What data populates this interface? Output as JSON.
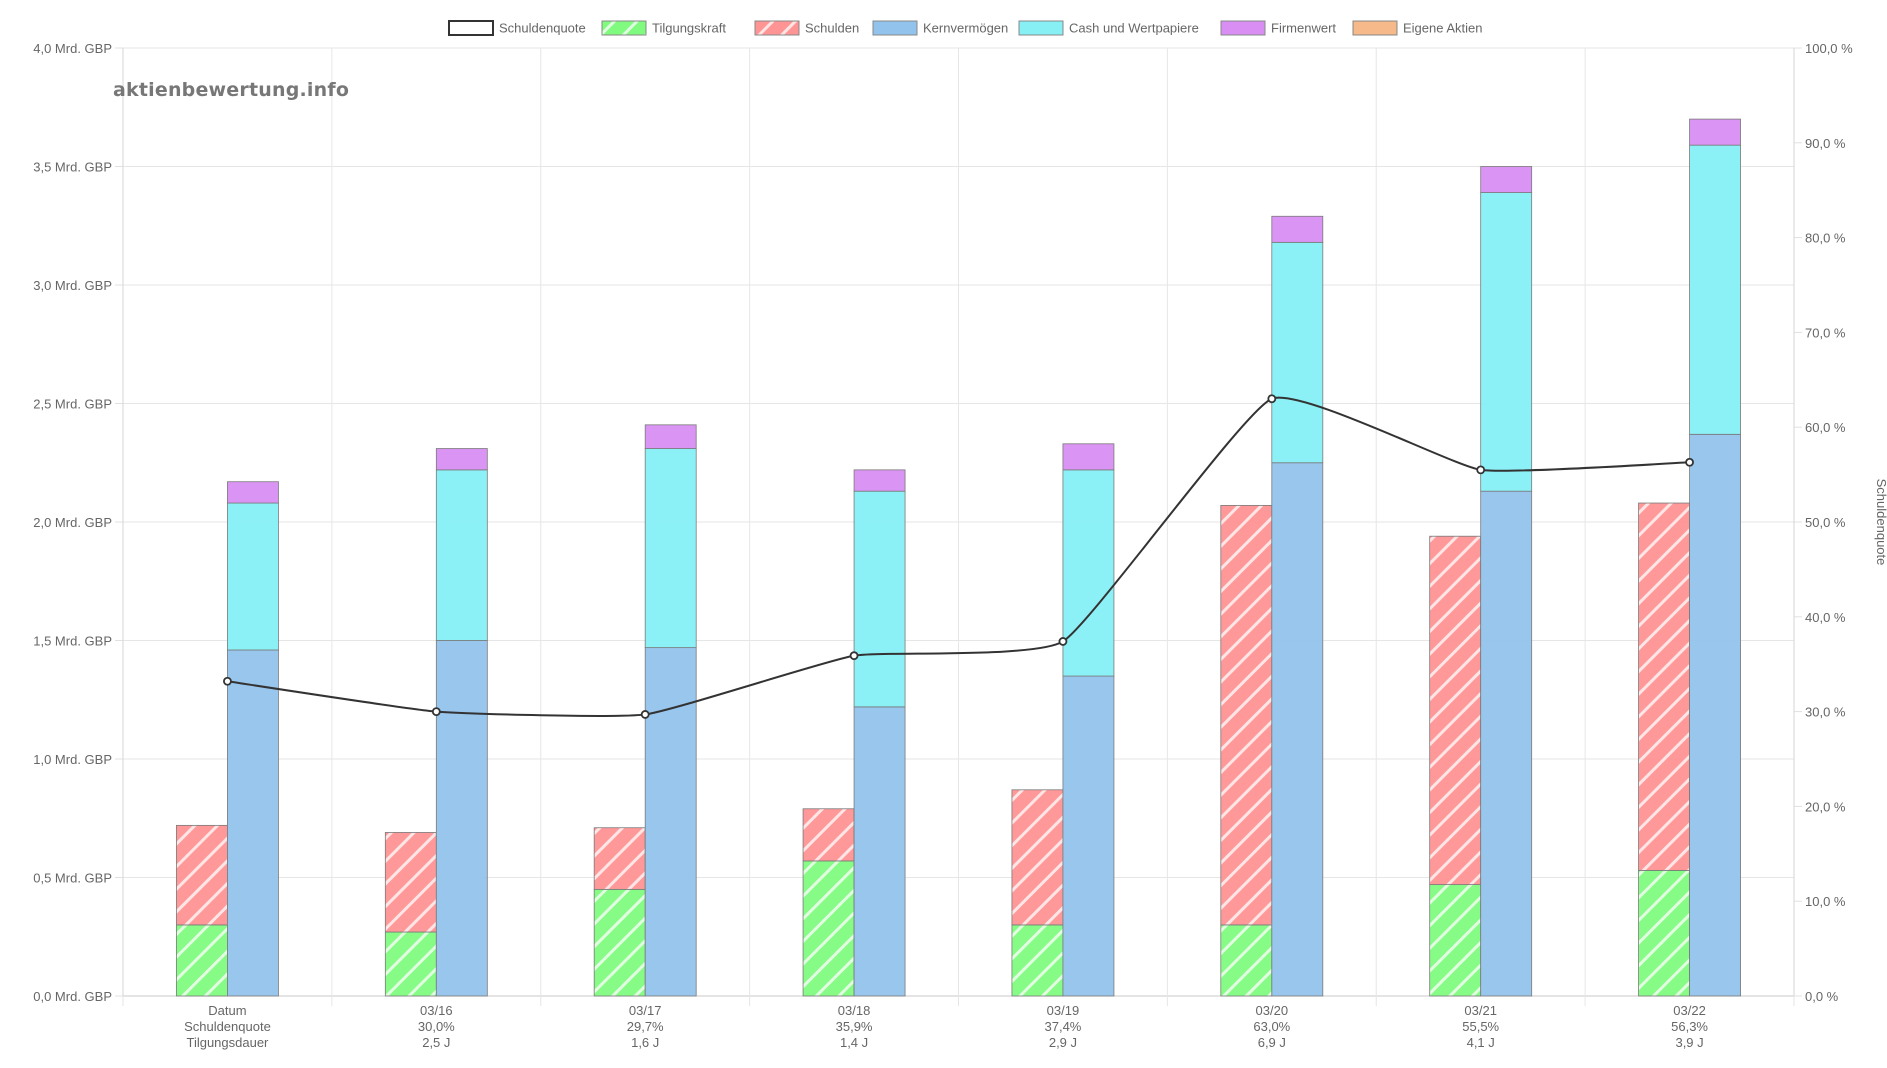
{
  "watermark": "aktienbewertung.info",
  "chart_data": {
    "type": "bar",
    "categories": [
      "Datum",
      "03/16",
      "03/17",
      "03/18",
      "03/19",
      "03/20",
      "03/21",
      "03/22"
    ],
    "category_sublabels": [
      [
        "Schuldenquote",
        "Tilgungsdauer"
      ],
      [
        "30,0%",
        "2,5 J"
      ],
      [
        "29,7%",
        "1,6 J"
      ],
      [
        "35,9%",
        "1,4 J"
      ],
      [
        "37,4%",
        "2,9 J"
      ],
      [
        "63,0%",
        "6,9 J"
      ],
      [
        "55,5%",
        "4,1 J"
      ],
      [
        "56,3%",
        "3,9 J"
      ]
    ],
    "y_ticks": [
      "0,0 Mrd. GBP",
      "0,5 Mrd. GBP",
      "1,0 Mrd. GBP",
      "1,5 Mrd. GBP",
      "2,0 Mrd. GBP",
      "2,5 Mrd. GBP",
      "3,0 Mrd. GBP",
      "3,5 Mrd. GBP",
      "4,0 Mrd. GBP"
    ],
    "ylim": [
      0,
      4.0
    ],
    "y2_ticks": [
      "0,0 %",
      "10,0 %",
      "20,0 %",
      "30,0 %",
      "40,0 %",
      "50,0 %",
      "60,0 %",
      "70,0 %",
      "80,0 %",
      "90,0 %",
      "100,0 %"
    ],
    "y2lim": [
      0,
      100
    ],
    "y2label": "Schuldenquote",
    "legend_position": "top-center",
    "grid": true,
    "series": [
      {
        "name": "Schuldenquote",
        "type": "line",
        "axis": "right",
        "color": "#333333",
        "values": [
          33.2,
          30.0,
          29.7,
          35.9,
          37.4,
          63.0,
          55.5,
          56.3
        ]
      },
      {
        "name": "Tilgungskraft",
        "type": "bar",
        "stack": "A",
        "pattern": "hatch",
        "color": "#77ff77",
        "values": [
          0.3,
          0.27,
          0.45,
          0.57,
          0.3,
          0.3,
          0.47,
          0.53
        ]
      },
      {
        "name": "Schulden",
        "type": "bar",
        "stack": "A",
        "pattern": "hatch",
        "color": "#ff8e8e",
        "values": [
          0.42,
          0.42,
          0.26,
          0.22,
          0.57,
          1.77,
          1.47,
          1.55
        ]
      },
      {
        "name": "Kernvermögen",
        "type": "bar",
        "stack": "B",
        "color": "#92c3ec",
        "values": [
          1.46,
          1.5,
          1.47,
          1.22,
          1.35,
          2.25,
          2.13,
          2.37
        ]
      },
      {
        "name": "Cash und Wertpapiere",
        "type": "bar",
        "stack": "B",
        "color": "#86f0f5",
        "values": [
          0.62,
          0.72,
          0.84,
          0.91,
          0.87,
          0.93,
          1.26,
          1.22
        ]
      },
      {
        "name": "Firmenwert",
        "type": "bar",
        "stack": "B",
        "color": "#d88ef2",
        "values": [
          0.09,
          0.09,
          0.1,
          0.09,
          0.11,
          0.11,
          0.11,
          0.11
        ]
      },
      {
        "name": "Eigene Aktien",
        "type": "bar",
        "stack": "B",
        "color": "#f5b98a",
        "values": [
          0,
          0,
          0,
          0,
          0,
          0,
          0,
          0
        ]
      }
    ]
  }
}
